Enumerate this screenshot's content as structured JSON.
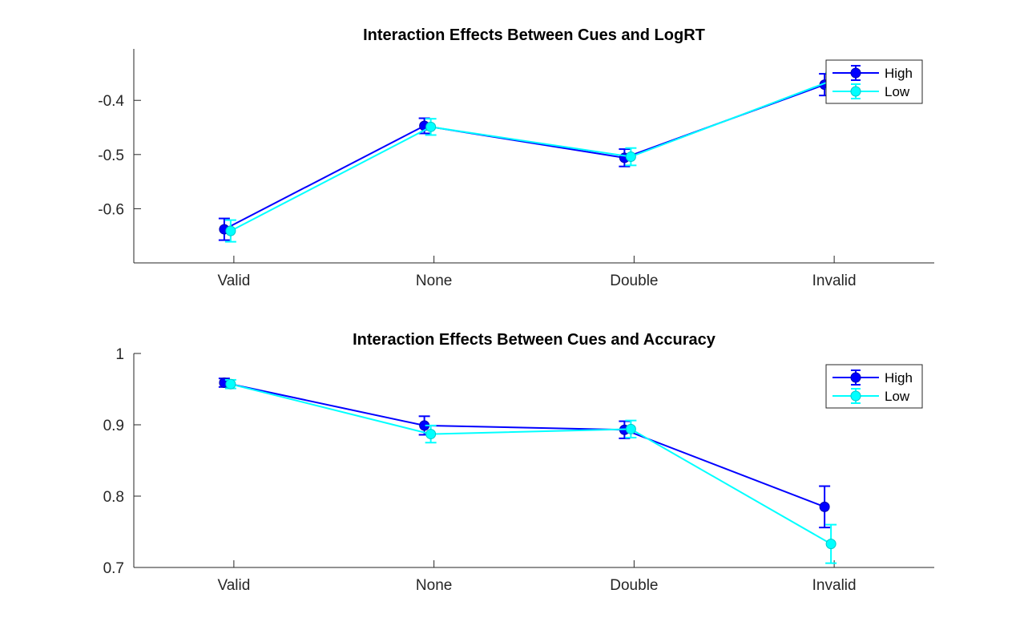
{
  "chart_data": [
    {
      "type": "line",
      "title": "Interaction Effects Between Cues and LogRT",
      "xlabel": "",
      "ylabel": "",
      "categories": [
        "Valid",
        "None",
        "Double",
        "Invalid"
      ],
      "ylim": [
        -0.7,
        -0.305
      ],
      "yticks": [
        -0.6,
        -0.5,
        -0.4
      ],
      "ytick_labels": [
        "-0.6",
        "-0.5",
        "-0.4"
      ],
      "grid": false,
      "legend_position": "top-right",
      "series": [
        {
          "name": "High",
          "color": "#0000ff",
          "values": [
            -0.638,
            -0.447,
            -0.506,
            -0.371
          ],
          "errors": [
            0.02,
            0.014,
            0.016,
            0.02
          ]
        },
        {
          "name": "Low",
          "color": "#00ffff",
          "values": [
            -0.641,
            -0.449,
            -0.504,
            -0.364
          ],
          "errors": [
            0.02,
            0.015,
            0.016,
            0.015
          ]
        }
      ]
    },
    {
      "type": "line",
      "title": "Interaction Effects Between Cues and Accuracy",
      "xlabel": "",
      "ylabel": "",
      "categories": [
        "Valid",
        "None",
        "Double",
        "Invalid"
      ],
      "ylim": [
        0.7,
        1.0
      ],
      "yticks": [
        0.7,
        0.8,
        0.9,
        1.0
      ],
      "ytick_labels": [
        "0.7",
        "0.8",
        "0.9",
        "1"
      ],
      "grid": false,
      "legend_position": "top-right",
      "series": [
        {
          "name": "High",
          "color": "#0000ff",
          "values": [
            0.959,
            0.899,
            0.893,
            0.785
          ],
          "errors": [
            0.006,
            0.013,
            0.012,
            0.029
          ]
        },
        {
          "name": "Low",
          "color": "#00ffff",
          "values": [
            0.957,
            0.887,
            0.894,
            0.733
          ],
          "errors": [
            0.006,
            0.012,
            0.012,
            0.027
          ]
        }
      ]
    }
  ]
}
